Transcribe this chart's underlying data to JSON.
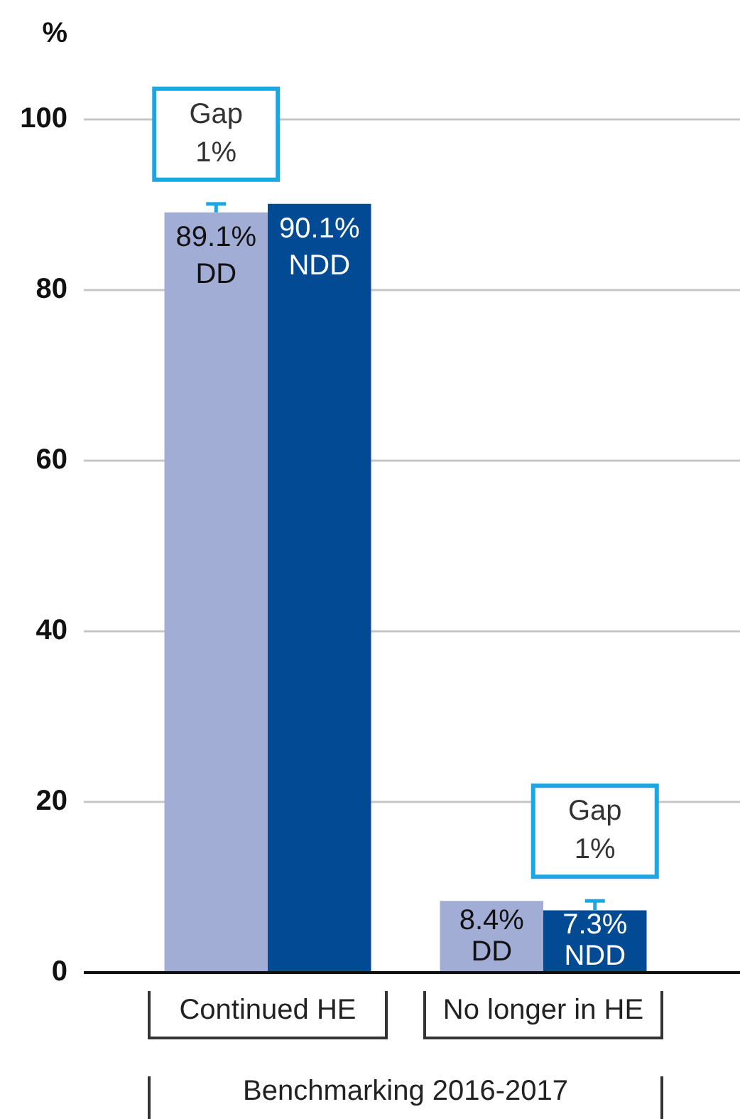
{
  "chart_data": {
    "type": "bar",
    "ylabel": "%",
    "xlabel": "Benchmarking 2016-2017",
    "categories": [
      "Continued HE",
      "No longer in HE"
    ],
    "series": [
      {
        "name": "DD",
        "color": "#a1add5",
        "values": [
          89.1,
          8.4
        ],
        "value_labels": [
          "89.1%",
          "8.4%"
        ]
      },
      {
        "name": "NDD",
        "color": "#024b94",
        "values": [
          90.1,
          7.3
        ],
        "value_labels": [
          "90.1%",
          "7.3%"
        ]
      }
    ],
    "ylim": [
      0,
      100
    ],
    "yticks": [
      0,
      20,
      40,
      60,
      80,
      100
    ],
    "grid": "y",
    "legend": false,
    "annotations": [
      {
        "text": "Gap\n1%",
        "x": "Continued HE",
        "y": 90.1
      },
      {
        "text": "Gap\n1%",
        "x": "No longer in HE",
        "y": 8.4
      }
    ]
  }
}
